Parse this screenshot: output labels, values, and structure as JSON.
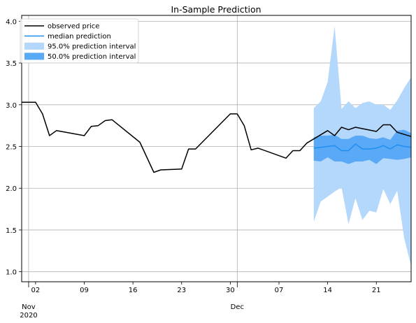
{
  "chart_data": {
    "type": "line",
    "title": "In-Sample Prediction",
    "xlabel": "",
    "ylabel": "",
    "x_axis": {
      "type": "date",
      "range": [
        "2020-10-31",
        "2020-12-26"
      ],
      "ticks": [
        {
          "date": "2020-11-02",
          "label": "02"
        },
        {
          "date": "2020-11-09",
          "label": "09"
        },
        {
          "date": "2020-11-16",
          "label": "16"
        },
        {
          "date": "2020-11-23",
          "label": "23"
        },
        {
          "date": "2020-11-30",
          "label": "30"
        },
        {
          "date": "2020-12-07",
          "label": "07"
        },
        {
          "date": "2020-12-14",
          "label": "14"
        },
        {
          "date": "2020-12-21",
          "label": "21"
        }
      ],
      "month_labels": [
        {
          "date": "2020-11-01",
          "label": "Nov",
          "year": "2020"
        },
        {
          "date": "2020-12-01",
          "label": "Dec",
          "year": ""
        }
      ],
      "major_grid_dates": [
        "2020-11-01",
        "2020-12-01"
      ]
    },
    "ylim": [
      0.88,
      4.07
    ],
    "yticks": [
      1.0,
      1.5,
      2.0,
      2.5,
      3.0,
      3.5,
      4.0
    ],
    "ytick_labels": [
      "1.0",
      "1.5",
      "2.0",
      "2.5",
      "3.0",
      "3.5",
      "4.0"
    ],
    "grid": true,
    "legend_position": "top-left",
    "series": [
      {
        "name": "observed price",
        "type": "line",
        "color": "#000000",
        "points": [
          [
            "2020-10-31",
            3.03
          ],
          [
            "2020-11-02",
            3.03
          ],
          [
            "2020-11-03",
            2.89
          ],
          [
            "2020-11-04",
            2.63
          ],
          [
            "2020-11-05",
            2.69
          ],
          [
            "2020-11-09",
            2.63
          ],
          [
            "2020-11-10",
            2.74
          ],
          [
            "2020-11-11",
            2.75
          ],
          [
            "2020-11-12",
            2.81
          ],
          [
            "2020-11-13",
            2.82
          ],
          [
            "2020-11-17",
            2.55
          ],
          [
            "2020-11-19",
            2.19
          ],
          [
            "2020-11-20",
            2.22
          ],
          [
            "2020-11-23",
            2.23
          ],
          [
            "2020-11-24",
            2.47
          ],
          [
            "2020-11-25",
            2.47
          ],
          [
            "2020-11-30",
            2.89
          ],
          [
            "2020-12-01",
            2.89
          ],
          [
            "2020-12-02",
            2.75
          ],
          [
            "2020-12-03",
            2.46
          ],
          [
            "2020-12-04",
            2.48
          ],
          [
            "2020-12-08",
            2.36
          ],
          [
            "2020-12-09",
            2.45
          ],
          [
            "2020-12-10",
            2.45
          ],
          [
            "2020-12-11",
            2.54
          ],
          [
            "2020-12-14",
            2.69
          ],
          [
            "2020-12-15",
            2.63
          ],
          [
            "2020-12-16",
            2.73
          ],
          [
            "2020-12-17",
            2.7
          ],
          [
            "2020-12-18",
            2.73
          ],
          [
            "2020-12-21",
            2.68
          ],
          [
            "2020-12-22",
            2.76
          ],
          [
            "2020-12-23",
            2.76
          ],
          [
            "2020-12-24",
            2.67
          ],
          [
            "2020-12-26",
            2.62
          ]
        ]
      },
      {
        "name": "median prediction",
        "type": "line",
        "color": "#1f8ef1",
        "points": [
          [
            "2020-12-12",
            2.48
          ],
          [
            "2020-12-13",
            2.49
          ],
          [
            "2020-12-14",
            2.5
          ],
          [
            "2020-12-15",
            2.51
          ],
          [
            "2020-12-16",
            2.45
          ],
          [
            "2020-12-17",
            2.45
          ],
          [
            "2020-12-18",
            2.53
          ],
          [
            "2020-12-19",
            2.47
          ],
          [
            "2020-12-20",
            2.47
          ],
          [
            "2020-12-21",
            2.48
          ],
          [
            "2020-12-22",
            2.51
          ],
          [
            "2020-12-23",
            2.47
          ],
          [
            "2020-12-24",
            2.52
          ],
          [
            "2020-12-25",
            2.5
          ],
          [
            "2020-12-26",
            2.49
          ]
        ]
      },
      {
        "name": "95.0% prediction interval",
        "type": "band",
        "color": "#b4d8fb",
        "bands": [
          [
            "2020-12-12",
            1.6,
            2.96
          ],
          [
            "2020-12-13",
            1.84,
            3.04
          ],
          [
            "2020-12-14",
            1.9,
            3.27
          ],
          [
            "2020-12-15",
            1.96,
            3.94
          ],
          [
            "2020-12-16",
            2.01,
            2.95
          ],
          [
            "2020-12-17",
            1.57,
            3.04
          ],
          [
            "2020-12-18",
            1.88,
            2.96
          ],
          [
            "2020-12-19",
            1.62,
            3.02
          ],
          [
            "2020-12-20",
            1.73,
            3.04
          ],
          [
            "2020-12-21",
            1.71,
            3.0
          ],
          [
            "2020-12-22",
            1.99,
            3.0
          ],
          [
            "2020-12-23",
            1.81,
            2.94
          ],
          [
            "2020-12-24",
            1.97,
            3.05
          ],
          [
            "2020-12-25",
            1.4,
            3.2
          ],
          [
            "2020-12-26",
            1.07,
            3.33
          ]
        ]
      },
      {
        "name": "50.0% prediction interval",
        "type": "band",
        "color": "#5aa9f6",
        "bands": [
          [
            "2020-12-12",
            2.33,
            2.61
          ],
          [
            "2020-12-13",
            2.32,
            2.63
          ],
          [
            "2020-12-14",
            2.37,
            2.63
          ],
          [
            "2020-12-15",
            2.32,
            2.64
          ],
          [
            "2020-12-16",
            2.32,
            2.59
          ],
          [
            "2020-12-17",
            2.29,
            2.59
          ],
          [
            "2020-12-18",
            2.32,
            2.63
          ],
          [
            "2020-12-19",
            2.32,
            2.63
          ],
          [
            "2020-12-20",
            2.34,
            2.6
          ],
          [
            "2020-12-21",
            2.29,
            2.59
          ],
          [
            "2020-12-22",
            2.36,
            2.61
          ],
          [
            "2020-12-23",
            2.35,
            2.58
          ],
          [
            "2020-12-24",
            2.34,
            2.69
          ],
          [
            "2020-12-25",
            2.35,
            2.7
          ],
          [
            "2020-12-26",
            2.37,
            2.66
          ]
        ]
      }
    ]
  }
}
